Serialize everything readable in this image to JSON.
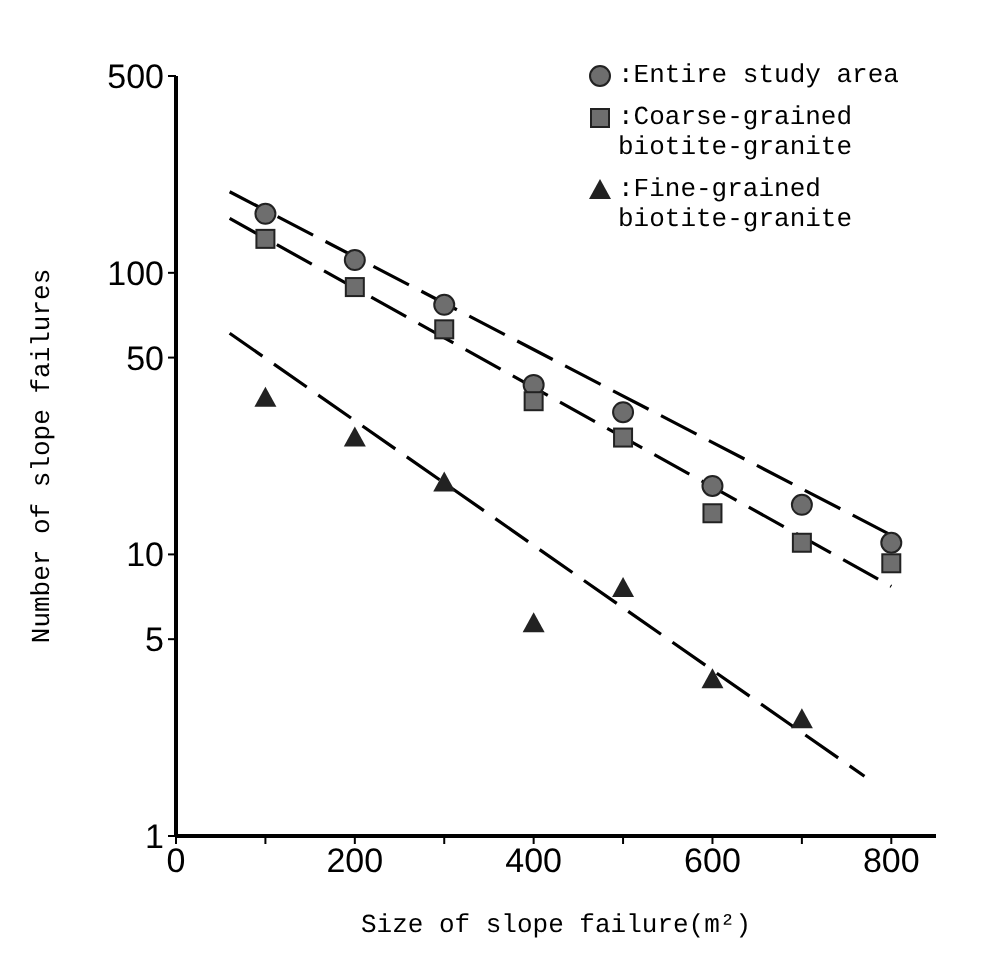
{
  "chart_data": {
    "type": "scatter",
    "xlabel": "Size of slope failure(m²)",
    "ylabel": "Number of slope failures",
    "log": "y",
    "xlim": [
      0,
      850
    ],
    "ylim": [
      1,
      500
    ],
    "xticks": [
      0,
      {
        "value": 100,
        "label": null
      },
      200,
      {
        "value": 300,
        "label": null
      },
      400,
      {
        "value": 500,
        "label": null
      },
      600,
      {
        "value": 700,
        "label": null
      },
      800
    ],
    "yticks": [
      1,
      5,
      10,
      50,
      100,
      500
    ],
    "legend": "top right",
    "x": [
      100,
      200,
      300,
      400,
      500,
      600,
      700,
      800
    ],
    "series": [
      {
        "name": ":Entire study area",
        "color": "#6e6e6e",
        "marker": "circle",
        "values": [
          162,
          111,
          77,
          40,
          32,
          17.5,
          15,
          11
        ]
      },
      {
        "name": ":Coarse-grained biotite-granite",
        "color": "#6e6e6e",
        "marker": "square",
        "values": [
          132,
          89,
          63,
          35,
          26,
          14,
          11,
          9.3
        ]
      },
      {
        "name": ":Fine-grained biotite-granite",
        "color": "#222222",
        "marker": "triangle",
        "values": [
          36,
          26,
          18,
          5.7,
          7.6,
          3.6,
          2.6,
          null
        ]
      },
      {
        "type": "line",
        "color": "#000000",
        "marker": "none",
        "line_style": "dashed",
        "x": [
          60,
          800
        ],
        "values": [
          194,
          11.7
        ]
      },
      {
        "type": "line",
        "color": "#000000",
        "marker": "none",
        "line_style": "dashed",
        "x": [
          60,
          800
        ],
        "values": [
          156,
          7.7
        ]
      },
      {
        "type": "line",
        "color": "#000000",
        "marker": "none",
        "line_style": "dashed",
        "x": [
          60,
          770
        ],
        "values": [
          61,
          1.63
        ]
      }
    ]
  }
}
